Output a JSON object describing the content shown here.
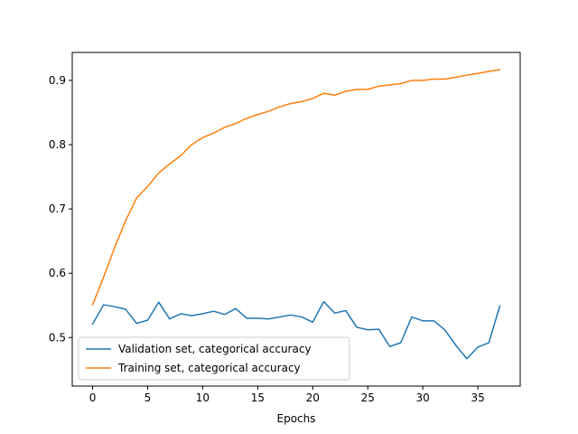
{
  "chart_data": {
    "type": "line",
    "title": "",
    "xlabel": "Epochs",
    "ylabel": "",
    "xlim": [
      -1.85,
      38.85
    ],
    "ylim": [
      0.4245,
      0.9435
    ],
    "xticks": [
      0,
      5,
      10,
      15,
      20,
      25,
      30,
      35
    ],
    "yticks": [
      0.5,
      0.6,
      0.7,
      0.8,
      0.9
    ],
    "grid": false,
    "legend_position": "lower-left",
    "x": [
      0,
      1,
      2,
      3,
      4,
      5,
      6,
      7,
      8,
      9,
      10,
      11,
      12,
      13,
      14,
      15,
      16,
      17,
      18,
      19,
      20,
      21,
      22,
      23,
      24,
      25,
      26,
      27,
      28,
      29,
      30,
      31,
      32,
      33,
      34,
      35,
      36,
      37
    ],
    "series": [
      {
        "name": "Validation set, categorical accuracy",
        "color": "#1f77b4",
        "values": [
          0.521,
          0.551,
          0.548,
          0.544,
          0.522,
          0.527,
          0.555,
          0.529,
          0.537,
          0.534,
          0.537,
          0.541,
          0.536,
          0.545,
          0.53,
          0.53,
          0.529,
          0.532,
          0.535,
          0.532,
          0.524,
          0.556,
          0.538,
          0.542,
          0.516,
          0.512,
          0.513,
          0.486,
          0.492,
          0.532,
          0.526,
          0.526,
          0.512,
          0.488,
          0.467,
          0.485,
          0.492,
          0.549
        ]
      },
      {
        "name": "Training set, categorical accuracy",
        "color": "#ff7f0e",
        "values": [
          0.551,
          0.594,
          0.64,
          0.682,
          0.717,
          0.735,
          0.756,
          0.77,
          0.783,
          0.8,
          0.811,
          0.818,
          0.827,
          0.833,
          0.841,
          0.847,
          0.852,
          0.859,
          0.864,
          0.867,
          0.872,
          0.88,
          0.877,
          0.883,
          0.886,
          0.886,
          0.891,
          0.893,
          0.895,
          0.9,
          0.9,
          0.902,
          0.902,
          0.905,
          0.908,
          0.911,
          0.914,
          0.917
        ]
      }
    ]
  }
}
